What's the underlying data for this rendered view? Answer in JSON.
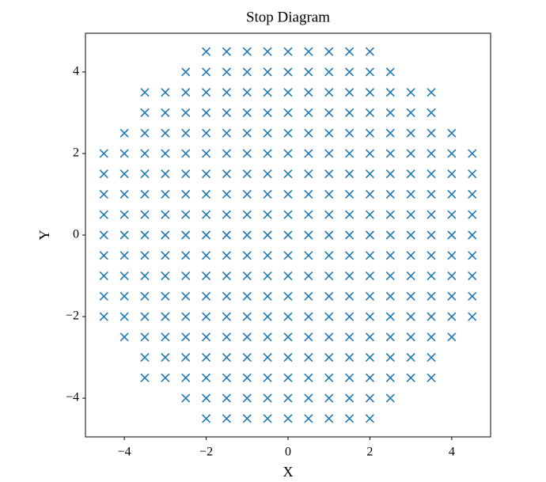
{
  "chart_data": {
    "type": "scatter",
    "title": "Stop Diagram",
    "x_label": "X",
    "y_label": "Y",
    "marker": "x",
    "color": "#1f77b4",
    "xlim": [
      -4.95,
      4.95
    ],
    "ylim": [
      -4.95,
      4.95
    ],
    "xticks": [
      {
        "value": -4,
        "label": "−4"
      },
      {
        "value": -2,
        "label": "−2"
      },
      0,
      2,
      4
    ],
    "yticks": [
      {
        "value": -4,
        "label": "−4"
      },
      {
        "value": -2,
        "label": "−2"
      },
      0,
      2,
      4
    ],
    "x": [
      -2,
      -1.5,
      -1,
      -0.5,
      0,
      0.5,
      1,
      1.5,
      2,
      -2.5,
      -2,
      -1.5,
      -1,
      -0.5,
      0,
      0.5,
      1,
      1.5,
      2,
      2.5,
      -3.5,
      -3,
      -2.5,
      -2,
      -1.5,
      -1,
      -0.5,
      0,
      0.5,
      1,
      1.5,
      2,
      2.5,
      3,
      3.5,
      -3.5,
      -3,
      -2.5,
      -2,
      -1.5,
      -1,
      -0.5,
      0,
      0.5,
      1,
      1.5,
      2,
      2.5,
      3,
      3.5,
      -4,
      -3.5,
      -3,
      -2.5,
      -2,
      -1.5,
      -1,
      -0.5,
      0,
      0.5,
      1,
      1.5,
      2,
      2.5,
      3,
      3.5,
      4,
      -4.5,
      -4,
      -3.5,
      -3,
      -2.5,
      -2,
      -1.5,
      -1,
      -0.5,
      0,
      0.5,
      1,
      1.5,
      2,
      2.5,
      3,
      3.5,
      4,
      4.5,
      -4.5,
      -4,
      -3.5,
      -3,
      -2.5,
      -2,
      -1.5,
      -1,
      -0.5,
      0,
      0.5,
      1,
      1.5,
      2,
      2.5,
      3,
      3.5,
      4,
      4.5,
      -4.5,
      -4,
      -3.5,
      -3,
      -2.5,
      -2,
      -1.5,
      -1,
      -0.5,
      0,
      0.5,
      1,
      1.5,
      2,
      2.5,
      3,
      3.5,
      4,
      4.5,
      -4.5,
      -4,
      -3.5,
      -3,
      -2.5,
      -2,
      -1.5,
      -1,
      -0.5,
      0,
      0.5,
      1,
      1.5,
      2,
      2.5,
      3,
      3.5,
      4,
      4.5,
      -4.5,
      -4,
      -3.5,
      -3,
      -2.5,
      -2,
      -1.5,
      -1,
      -0.5,
      0,
      0.5,
      1,
      1.5,
      2,
      2.5,
      3,
      3.5,
      4,
      4.5,
      -4.5,
      -4,
      -3.5,
      -3,
      -2.5,
      -2,
      -1.5,
      -1,
      -0.5,
      0,
      0.5,
      1,
      1.5,
      2,
      2.5,
      3,
      3.5,
      4,
      4.5,
      -4.5,
      -4,
      -3.5,
      -3,
      -2.5,
      -2,
      -1.5,
      -1,
      -0.5,
      0,
      0.5,
      1,
      1.5,
      2,
      2.5,
      3,
      3.5,
      4,
      4.5,
      -4.5,
      -4,
      -3.5,
      -3,
      -2.5,
      -2,
      -1.5,
      -1,
      -0.5,
      0,
      0.5,
      1,
      1.5,
      2,
      2.5,
      3,
      3.5,
      4,
      4.5,
      -4.5,
      -4,
      -3.5,
      -3,
      -2.5,
      -2,
      -1.5,
      -1,
      -0.5,
      0,
      0.5,
      1,
      1.5,
      2,
      2.5,
      3,
      3.5,
      4,
      4.5,
      -4,
      -3.5,
      -3,
      -2.5,
      -2,
      -1.5,
      -1,
      -0.5,
      0,
      0.5,
      1,
      1.5,
      2,
      2.5,
      3,
      3.5,
      4,
      -3.5,
      -3,
      -2.5,
      -2,
      -1.5,
      -1,
      -0.5,
      0,
      0.5,
      1,
      1.5,
      2,
      2.5,
      3,
      3.5,
      -3.5,
      -3,
      -2.5,
      -2,
      -1.5,
      -1,
      -0.5,
      0,
      0.5,
      1,
      1.5,
      2,
      2.5,
      3,
      3.5,
      -2.5,
      -2,
      -1.5,
      -1,
      -0.5,
      0,
      0.5,
      1,
      1.5,
      2,
      2.5,
      -2,
      -1.5,
      -1,
      -0.5,
      0,
      0.5,
      1,
      1.5,
      2
    ],
    "y": [
      4.5,
      4.5,
      4.5,
      4.5,
      4.5,
      4.5,
      4.5,
      4.5,
      4.5,
      4,
      4,
      4,
      4,
      4,
      4,
      4,
      4,
      4,
      4,
      4,
      3.5,
      3.5,
      3.5,
      3.5,
      3.5,
      3.5,
      3.5,
      3.5,
      3.5,
      3.5,
      3.5,
      3.5,
      3.5,
      3.5,
      3.5,
      3,
      3,
      3,
      3,
      3,
      3,
      3,
      3,
      3,
      3,
      3,
      3,
      3,
      3,
      3,
      2.5,
      2.5,
      2.5,
      2.5,
      2.5,
      2.5,
      2.5,
      2.5,
      2.5,
      2.5,
      2.5,
      2.5,
      2.5,
      2.5,
      2.5,
      2.5,
      2.5,
      2,
      2,
      2,
      2,
      2,
      2,
      2,
      2,
      2,
      2,
      2,
      2,
      2,
      2,
      2,
      2,
      2,
      2,
      2,
      1.5,
      1.5,
      1.5,
      1.5,
      1.5,
      1.5,
      1.5,
      1.5,
      1.5,
      1.5,
      1.5,
      1.5,
      1.5,
      1.5,
      1.5,
      1.5,
      1.5,
      1.5,
      1.5,
      1,
      1,
      1,
      1,
      1,
      1,
      1,
      1,
      1,
      1,
      1,
      1,
      1,
      1,
      1,
      1,
      1,
      1,
      1,
      0.5,
      0.5,
      0.5,
      0.5,
      0.5,
      0.5,
      0.5,
      0.5,
      0.5,
      0.5,
      0.5,
      0.5,
      0.5,
      0.5,
      0.5,
      0.5,
      0.5,
      0.5,
      0.5,
      0,
      0,
      0,
      0,
      0,
      0,
      0,
      0,
      0,
      0,
      0,
      0,
      0,
      0,
      0,
      0,
      0,
      0,
      0,
      -0.5,
      -0.5,
      -0.5,
      -0.5,
      -0.5,
      -0.5,
      -0.5,
      -0.5,
      -0.5,
      -0.5,
      -0.5,
      -0.5,
      -0.5,
      -0.5,
      -0.5,
      -0.5,
      -0.5,
      -0.5,
      -0.5,
      -1,
      -1,
      -1,
      -1,
      -1,
      -1,
      -1,
      -1,
      -1,
      -1,
      -1,
      -1,
      -1,
      -1,
      -1,
      -1,
      -1,
      -1,
      -1,
      -1.5,
      -1.5,
      -1.5,
      -1.5,
      -1.5,
      -1.5,
      -1.5,
      -1.5,
      -1.5,
      -1.5,
      -1.5,
      -1.5,
      -1.5,
      -1.5,
      -1.5,
      -1.5,
      -1.5,
      -1.5,
      -1.5,
      -2,
      -2,
      -2,
      -2,
      -2,
      -2,
      -2,
      -2,
      -2,
      -2,
      -2,
      -2,
      -2,
      -2,
      -2,
      -2,
      -2,
      -2,
      -2,
      -2.5,
      -2.5,
      -2.5,
      -2.5,
      -2.5,
      -2.5,
      -2.5,
      -2.5,
      -2.5,
      -2.5,
      -2.5,
      -2.5,
      -2.5,
      -2.5,
      -2.5,
      -2.5,
      -2.5,
      -3,
      -3,
      -3,
      -3,
      -3,
      -3,
      -3,
      -3,
      -3,
      -3,
      -3,
      -3,
      -3,
      -3,
      -3,
      -3.5,
      -3.5,
      -3.5,
      -3.5,
      -3.5,
      -3.5,
      -3.5,
      -3.5,
      -3.5,
      -3.5,
      -3.5,
      -3.5,
      -3.5,
      -3.5,
      -3.5,
      -4,
      -4,
      -4,
      -4,
      -4,
      -4,
      -4,
      -4,
      -4,
      -4,
      -4,
      -4.5,
      -4.5,
      -4.5,
      -4.5,
      -4.5,
      -4.5,
      -4.5,
      -4.5,
      -4.5
    ]
  }
}
